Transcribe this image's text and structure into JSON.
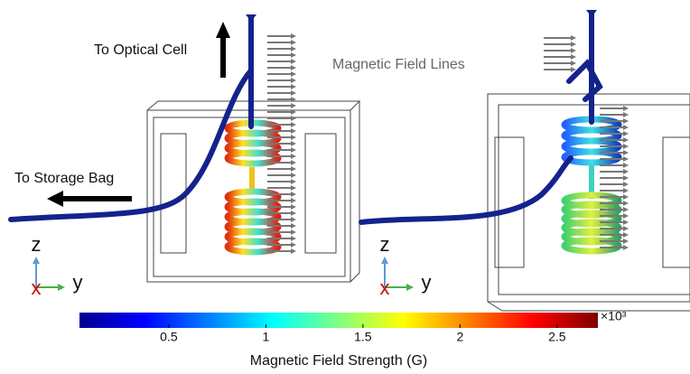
{
  "annotations": {
    "optical_cell": "To Optical Cell",
    "storage_bag": "To Storage Bag",
    "field_lines": "Magnetic Field Lines"
  },
  "triad_left": {
    "z": "z",
    "y": "y",
    "x": "x"
  },
  "triad_right": {
    "z": "z",
    "y": "y",
    "x": "x"
  },
  "colorbar": {
    "lim": [
      0.04,
      2.71
    ],
    "ticks": [
      0.5,
      1,
      1.5,
      2,
      2.5
    ],
    "multiplier": "×10³",
    "label": "Magnetic Field Strength (G)"
  }
}
